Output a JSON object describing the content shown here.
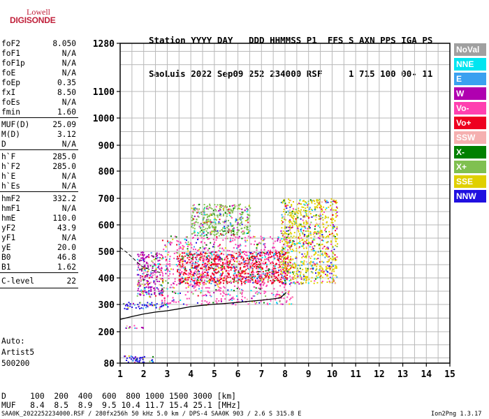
{
  "logo": {
    "line1": "Lowell",
    "line2": "DIGISONDE"
  },
  "header": {
    "line1": "Station YYYY DAY   DDD HHMMSS P1  FFS S AXN PPS IGA PS",
    "line2": "SaoLuis 2022 Sep09 252 234000 RSF     1 715 100 00- 11"
  },
  "params": [
    {
      "label": "foF2",
      "value": "8.050"
    },
    {
      "label": "foF1",
      "value": "N/A"
    },
    {
      "label": "foF1p",
      "value": "N/A"
    },
    {
      "label": "foE",
      "value": "N/A"
    },
    {
      "label": "foEp",
      "value": "0.35"
    },
    {
      "label": "fxI",
      "value": "8.50"
    },
    {
      "label": "foEs",
      "value": "N/A"
    },
    {
      "label": "fmin",
      "value": "1.60"
    },
    {
      "label": "MUF(D)",
      "value": "25.09"
    },
    {
      "label": "M(D)",
      "value": "3.12"
    },
    {
      "label": "D",
      "value": "N/A"
    },
    {
      "label": "h`F",
      "value": "285.0"
    },
    {
      "label": "h`F2",
      "value": "285.0"
    },
    {
      "label": "h`E",
      "value": "N/A"
    },
    {
      "label": "h`Es",
      "value": "N/A"
    },
    {
      "label": "hmF2",
      "value": "332.2"
    },
    {
      "label": "hmF1",
      "value": "N/A"
    },
    {
      "label": "hmE",
      "value": "110.0"
    },
    {
      "label": "yF2",
      "value": "43.9"
    },
    {
      "label": "yF1",
      "value": "N/A"
    },
    {
      "label": "yE",
      "value": "20.0"
    },
    {
      "label": "B0",
      "value": "46.8"
    },
    {
      "label": "B1",
      "value": "1.62"
    },
    {
      "label": "C-level",
      "value": "22"
    }
  ],
  "auto": {
    "line1": "Auto:",
    "line2": "Artist5",
    "line3": "500200"
  },
  "legend": [
    {
      "label": "NoVal",
      "color": "#a0a0a0"
    },
    {
      "label": "NNE",
      "color": "#00e5f0"
    },
    {
      "label": "E",
      "color": "#3aa0f0"
    },
    {
      "label": "W",
      "color": "#b000b0"
    },
    {
      "label": "Vo-",
      "color": "#ff40b0"
    },
    {
      "label": "Vo+",
      "color": "#ee0020"
    },
    {
      "label": "SSW",
      "color": "#f5b0b0"
    },
    {
      "label": "X-",
      "color": "#008000"
    },
    {
      "label": "X+",
      "color": "#80c050"
    },
    {
      "label": "SSE",
      "color": "#e0d000"
    },
    {
      "label": "NNW",
      "color": "#2010e0"
    }
  ],
  "footer": {
    "d_row": "D     100  200  400  600  800 1000 1500 3000 [km]",
    "muf_row": "MUF   8.4  8.5  8.9  9.5 10.4 11.7 15.4 25.1 [MHz]",
    "file_info": "SAA0K_2022252234000.RSF / 280fx256h 50 kHz 5.0 km / DPS-4 SAA0K 903 / 2.6 S 315.8 E",
    "version": "Ion2Png 1.3.17"
  },
  "chart_data": {
    "type": "scatter",
    "title": "",
    "xlabel": "",
    "ylabel": "",
    "xlim": [
      1,
      15
    ],
    "ylim": [
      80,
      1280
    ],
    "x_ticks": [
      1,
      2,
      3,
      4,
      5,
      6,
      7,
      8,
      9,
      10,
      11,
      12,
      13,
      14,
      15
    ],
    "y_ticks": [
      80,
      200,
      300,
      400,
      500,
      600,
      700,
      800,
      900,
      1000,
      1100,
      1280
    ],
    "grid": true,
    "y_scale": "mixed (linear, compressed above 1000 km)",
    "trace_profile": {
      "name": "",
      "x": [
        1.0,
        1.5,
        2.0,
        2.5,
        3.0,
        3.5,
        4.0,
        4.5,
        5.0,
        5.5,
        6.0,
        6.5,
        7.0,
        7.5,
        7.8,
        8.05
      ],
      "y": [
        245,
        256,
        265,
        272,
        277,
        284,
        292,
        297,
        301,
        304,
        308,
        312,
        316,
        321,
        325,
        345
      ]
    },
    "dashed_profile": {
      "x": [
        1.0,
        1.3,
        1.6,
        1.9,
        2.3,
        2.7
      ],
      "y": [
        515,
        495,
        470,
        445,
        430,
        420
      ]
    },
    "echo_regions": [
      {
        "x": [
          1.1,
          3.0
        ],
        "y": [
          285,
          310
        ],
        "color": "NNW"
      },
      {
        "x": [
          1.7,
          2.8
        ],
        "y": [
          330,
          500
        ],
        "color": "W"
      },
      {
        "x": [
          2.7,
          8.3
        ],
        "y": [
          300,
          560
        ],
        "color": "Vo-"
      },
      {
        "x": [
          3.4,
          8.1
        ],
        "y": [
          380,
          500
        ],
        "color": "Vo+"
      },
      {
        "x": [
          4.0,
          6.5
        ],
        "y": [
          560,
          680
        ],
        "color": "X+"
      },
      {
        "x": [
          7.8,
          10.2
        ],
        "y": [
          380,
          700
        ],
        "color": "SSE"
      },
      {
        "x": [
          1.1,
          2.4
        ],
        "y": [
          85,
          110
        ],
        "color": "NNW"
      },
      {
        "x": [
          1.1,
          2.0
        ],
        "y": [
          215,
          225
        ],
        "color": "W"
      }
    ]
  }
}
